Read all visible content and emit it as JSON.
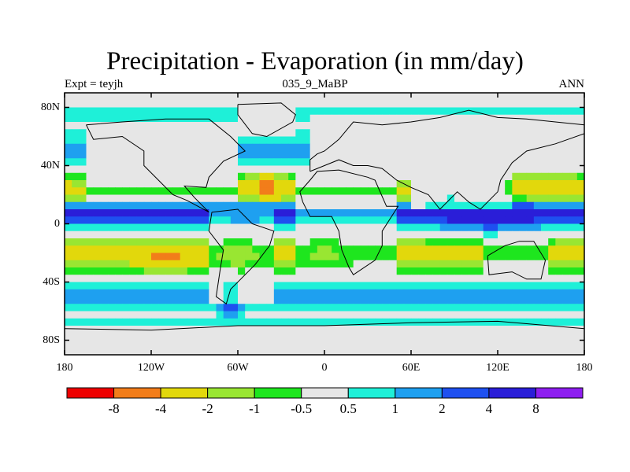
{
  "chart_data": {
    "type": "heatmap",
    "title": "Precipitation - Evaporation (in mm/day)",
    "subtitle_left": "Expt = teyjh",
    "subtitle_center": "035_9_MaBP",
    "subtitle_right": "ANN",
    "projection": "cylindrical equidistant, global map with coastline outlines",
    "x_range": [
      -180,
      180
    ],
    "y_range": [
      -90,
      90
    ],
    "x_ticks": [
      {
        "value": -180,
        "label": "180"
      },
      {
        "value": -120,
        "label": "120W"
      },
      {
        "value": -60,
        "label": "60W"
      },
      {
        "value": 0,
        "label": "0"
      },
      {
        "value": 60,
        "label": "60E"
      },
      {
        "value": 120,
        "label": "120E"
      },
      {
        "value": 180,
        "label": "180"
      }
    ],
    "y_ticks": [
      {
        "value": 80,
        "label": "80N"
      },
      {
        "value": 40,
        "label": "40N"
      },
      {
        "value": 0,
        "label": "0"
      },
      {
        "value": -40,
        "label": "40S"
      },
      {
        "value": -80,
        "label": "80S"
      }
    ],
    "colorbar": {
      "position": "bottom",
      "colors": [
        "#ee0000",
        "#f27d1a",
        "#e2d80c",
        "#99e632",
        "#1ee61e",
        "#e6e6e6",
        "#1ef0d8",
        "#1ea0f0",
        "#1e50f0",
        "#2a1ed8",
        "#8e1ef0"
      ],
      "labels": [
        "-8",
        "-4",
        "-2",
        "-1",
        "-0.5",
        "0.5",
        "1",
        "2",
        "4",
        "8"
      ]
    }
  }
}
